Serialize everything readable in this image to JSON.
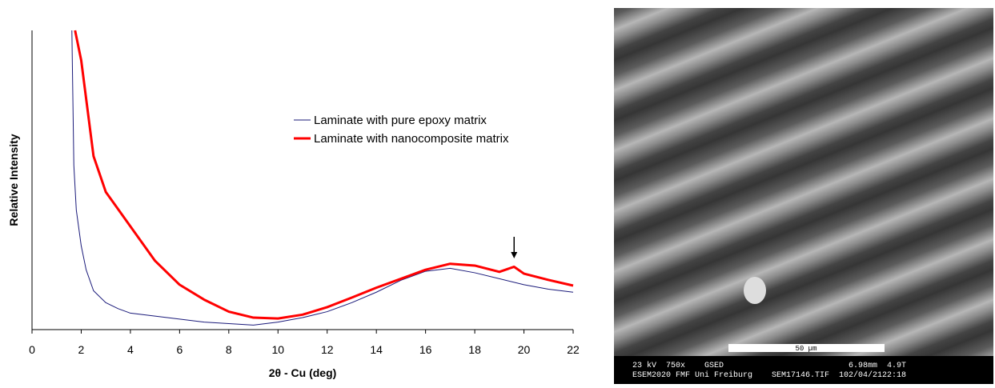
{
  "chart_data": {
    "type": "line",
    "xlabel": "2θ - Cu (deg)",
    "ylabel": "Relative Intensity",
    "xlim": [
      0,
      22
    ],
    "xticks": [
      0,
      2,
      4,
      6,
      8,
      10,
      12,
      14,
      16,
      18,
      20,
      22
    ],
    "ylim": [
      0,
      100
    ],
    "legend": "upper-center",
    "series": [
      {
        "name": "Laminate with pure epoxy matrix",
        "color": "#1a1a7a",
        "width": 1,
        "x": [
          1.62,
          1.7,
          1.8,
          2.0,
          2.2,
          2.5,
          3,
          3.5,
          4,
          5,
          6,
          7,
          8,
          9,
          10,
          11,
          12,
          13,
          14,
          15,
          16,
          17,
          18,
          19,
          20,
          21,
          22
        ],
        "values": [
          100,
          55,
          40,
          28,
          20,
          13,
          9,
          7,
          5.5,
          4.5,
          3.5,
          2.5,
          2,
          1.5,
          2.5,
          4,
          6,
          9,
          12.5,
          16.5,
          19.5,
          20.5,
          19,
          17,
          15,
          13.5,
          12.5
        ]
      },
      {
        "name": "Laminate with nanocomposite matrix",
        "color": "#ff0000",
        "width": 3,
        "x": [
          1.75,
          2,
          2.5,
          3,
          4,
          5,
          6,
          7,
          8,
          9,
          10,
          11,
          12,
          13,
          14,
          15,
          16,
          17,
          18,
          19,
          19.6,
          20,
          21,
          22
        ],
        "values": [
          100,
          90,
          58,
          46,
          34.5,
          23,
          15,
          10,
          6,
          4,
          3.7,
          5,
          7.5,
          10.7,
          14,
          17,
          20,
          22,
          21.4,
          19.3,
          21,
          18.7,
          16.6,
          14.7
        ]
      }
    ],
    "annotation_arrow_x": 19.6
  },
  "image": {
    "scale_bar": "50 µm",
    "info_line_1": "23 kV  750x    GSED                          6.98mm  4.9T",
    "info_line_2": "ESEM2020 FMF Uni Freiburg    SEM17146.TIF  102/04/2122:18"
  }
}
